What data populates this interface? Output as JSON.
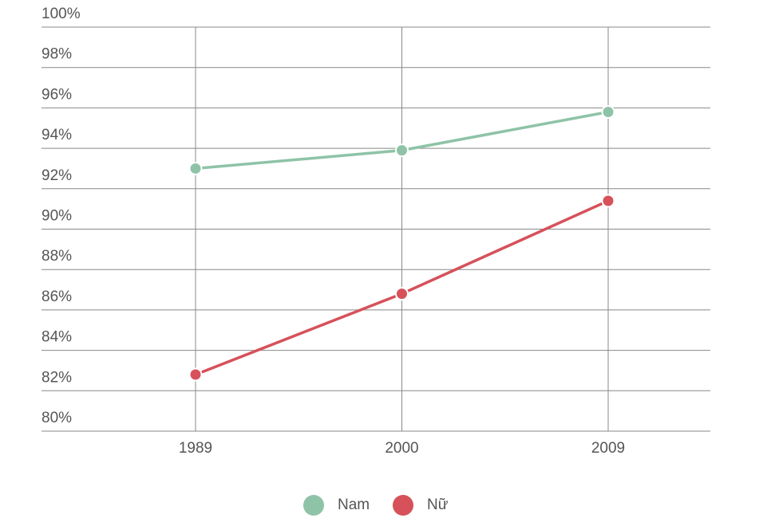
{
  "chart_data": {
    "type": "line",
    "categories": [
      "1989",
      "2000",
      "2009"
    ],
    "series": [
      {
        "name": "Nam",
        "color": "#8ec3a7",
        "values": [
          93.0,
          93.9,
          95.8
        ]
      },
      {
        "name": "Nữ",
        "color": "#d6515a",
        "values": [
          82.8,
          86.8,
          91.4
        ]
      }
    ],
    "ylim": [
      80,
      100
    ],
    "yticks": [
      {
        "value": 80,
        "label": "80%"
      },
      {
        "value": 82,
        "label": "82%"
      },
      {
        "value": 84,
        "label": "84%"
      },
      {
        "value": 86,
        "label": "86%"
      },
      {
        "value": 88,
        "label": "88%"
      },
      {
        "value": 90,
        "label": "90%"
      },
      {
        "value": 92,
        "label": "92%"
      },
      {
        "value": 94,
        "label": "94%"
      },
      {
        "value": 96,
        "label": "96%"
      },
      {
        "value": 98,
        "label": "98%"
      },
      {
        "value": 100,
        "label": "100%"
      }
    ],
    "grid": true,
    "legend": "bottom"
  }
}
